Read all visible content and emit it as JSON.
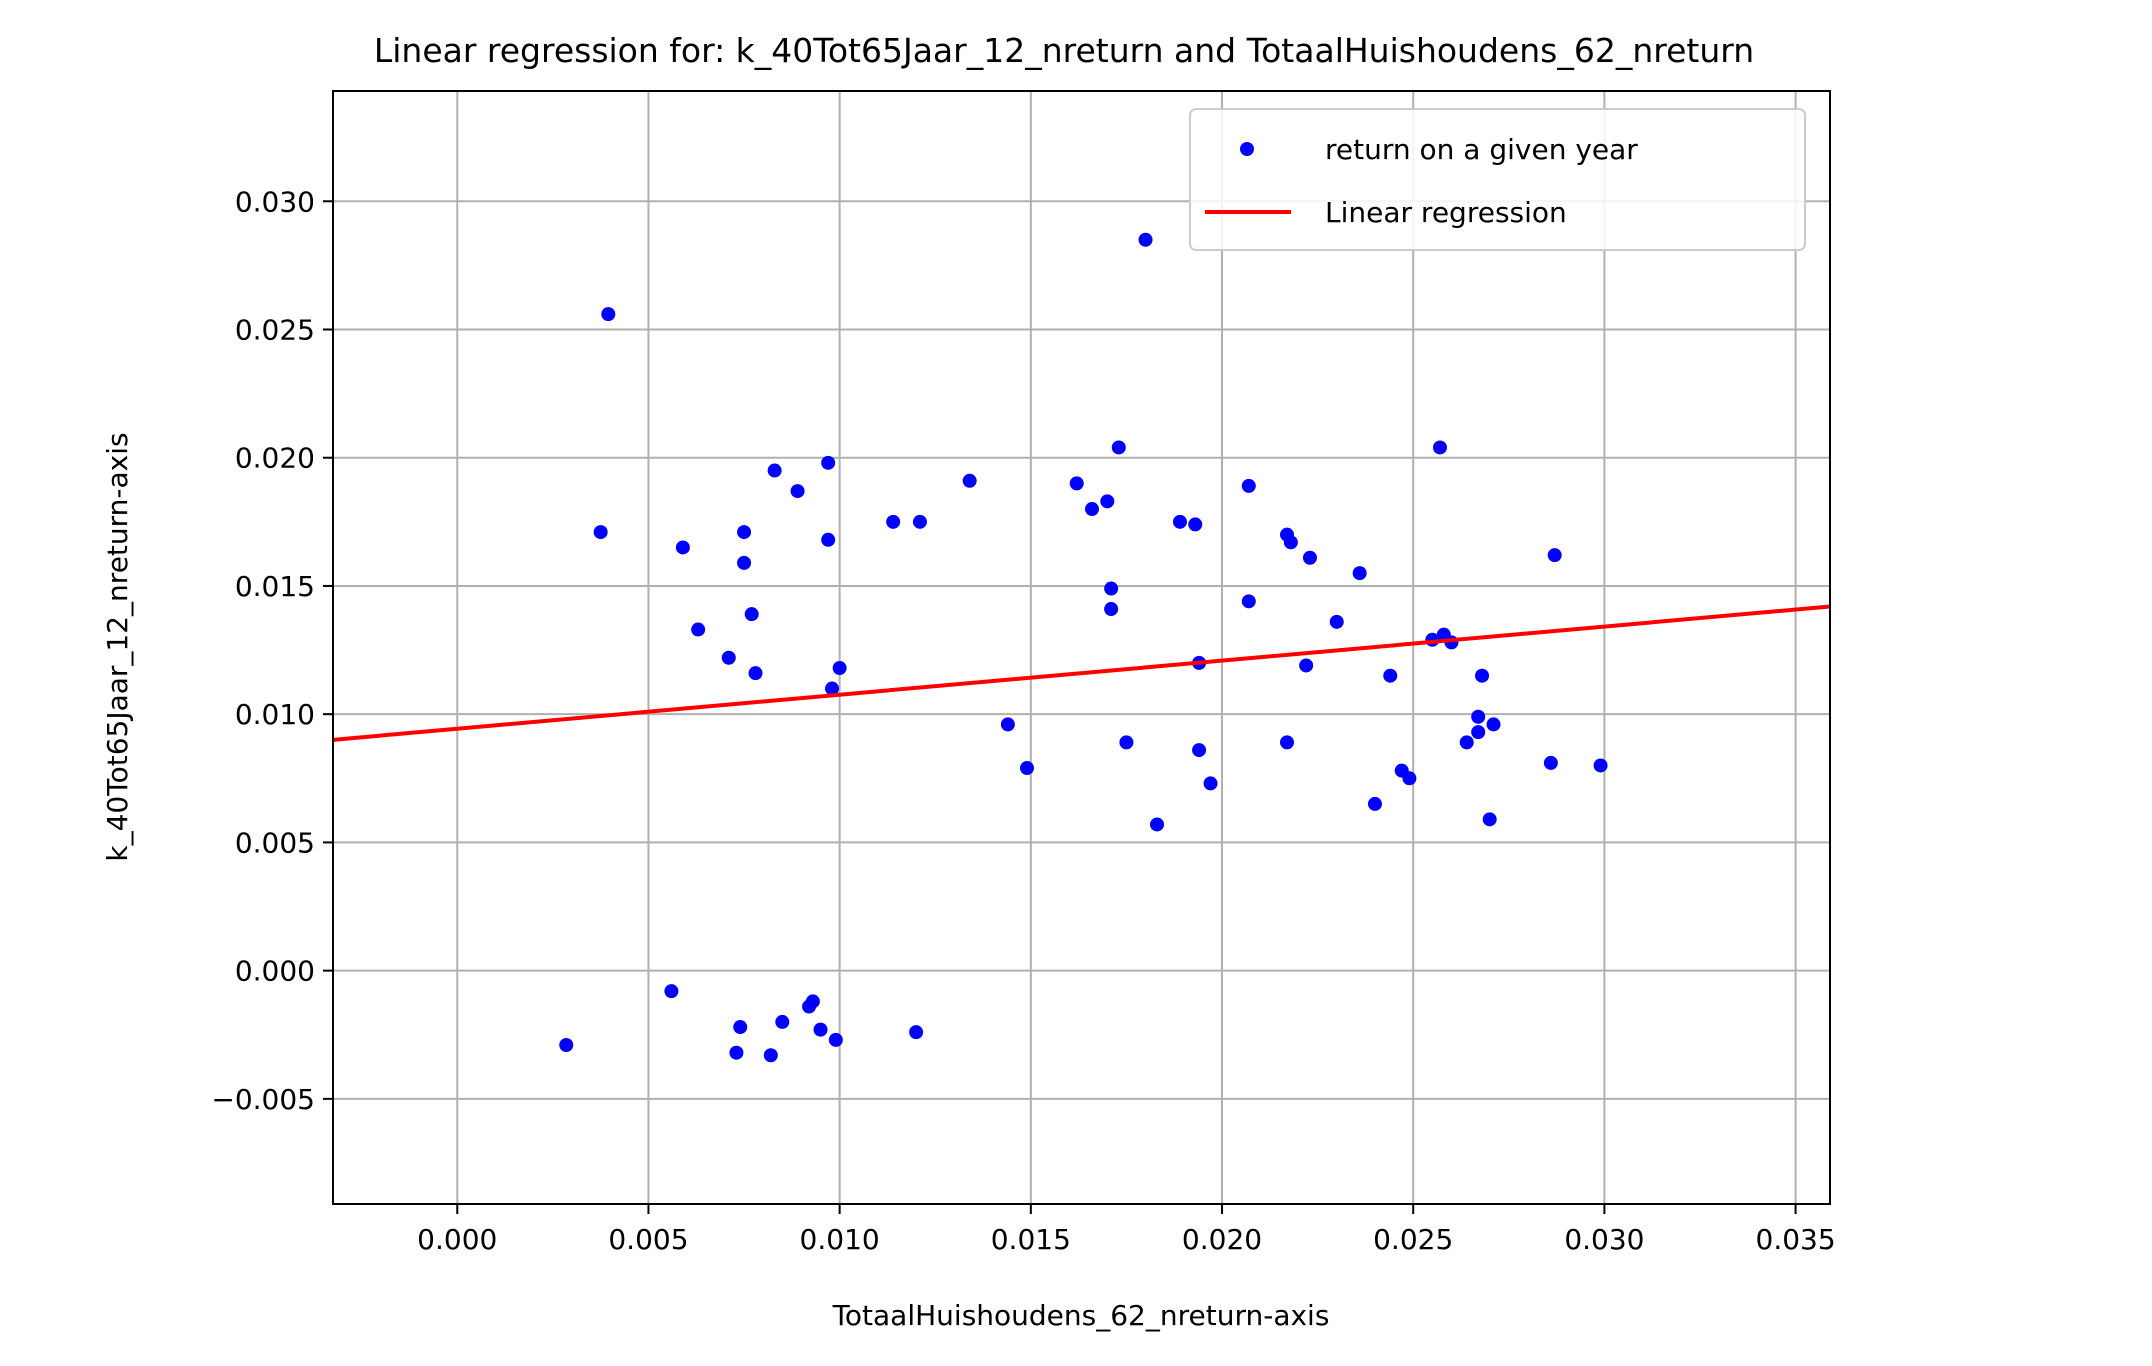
{
  "chart_data": {
    "type": "scatter",
    "title": "Linear regression for: k_40Tot65Jaar_12_nreturn and TotaalHuishoudens_62_nreturn",
    "xlabel": "TotaalHuishoudens_62_nreturn-axis",
    "ylabel": "k_40Tot65Jaar_12_nreturn-axis",
    "xlim": [
      -0.00325,
      0.0359
    ],
    "ylim": [
      -0.0091,
      0.0343
    ],
    "x_ticks": [
      0.0,
      0.005,
      0.01,
      0.015,
      0.02,
      0.025,
      0.03,
      0.035
    ],
    "x_tick_labels": [
      "0.000",
      "0.005",
      "0.010",
      "0.015",
      "0.020",
      "0.025",
      "0.030",
      "0.035"
    ],
    "y_ticks": [
      -0.005,
      0.0,
      0.005,
      0.01,
      0.015,
      0.02,
      0.025,
      0.03
    ],
    "y_tick_labels": [
      "−0.005",
      "0.000",
      "0.005",
      "0.010",
      "0.015",
      "0.020",
      "0.025",
      "0.030"
    ],
    "grid": true,
    "legend_position": "upper right",
    "series": [
      {
        "name": "return on a given year",
        "kind": "scatter",
        "color": "#0000ff",
        "points": [
          [
            0.00285,
            -0.0029
          ],
          [
            0.00375,
            0.0171
          ],
          [
            0.00395,
            0.0256
          ],
          [
            0.0056,
            -0.0008
          ],
          [
            0.0059,
            0.0165
          ],
          [
            0.0063,
            0.0133
          ],
          [
            0.0071,
            0.0122
          ],
          [
            0.0073,
            -0.0032
          ],
          [
            0.0074,
            -0.0022
          ],
          [
            0.0075,
            0.0171
          ],
          [
            0.0075,
            0.0159
          ],
          [
            0.0077,
            0.0139
          ],
          [
            0.0078,
            0.0116
          ],
          [
            0.0082,
            -0.0033
          ],
          [
            0.0083,
            0.0195
          ],
          [
            0.0085,
            -0.002
          ],
          [
            0.0089,
            0.0187
          ],
          [
            0.0092,
            -0.0014
          ],
          [
            0.0093,
            -0.0012
          ],
          [
            0.0095,
            -0.0023
          ],
          [
            0.0097,
            0.0168
          ],
          [
            0.0097,
            0.0198
          ],
          [
            0.0098,
            0.011
          ],
          [
            0.0099,
            -0.0027
          ],
          [
            0.01,
            0.0118
          ],
          [
            0.0114,
            0.0175
          ],
          [
            0.012,
            -0.0024
          ],
          [
            0.0121,
            0.0175
          ],
          [
            0.0134,
            0.0191
          ],
          [
            0.0144,
            0.0096
          ],
          [
            0.0149,
            0.0079
          ],
          [
            0.0162,
            0.019
          ],
          [
            0.0166,
            0.018
          ],
          [
            0.017,
            0.0183
          ],
          [
            0.0171,
            0.0149
          ],
          [
            0.0171,
            0.0141
          ],
          [
            0.0173,
            0.0204
          ],
          [
            0.0175,
            0.0089
          ],
          [
            0.018,
            0.0285
          ],
          [
            0.0183,
            0.0057
          ],
          [
            0.0189,
            0.0175
          ],
          [
            0.0193,
            0.0174
          ],
          [
            0.0194,
            0.012
          ],
          [
            0.0194,
            0.0086
          ],
          [
            0.0197,
            0.0073
          ],
          [
            0.0207,
            0.0189
          ],
          [
            0.0207,
            0.0144
          ],
          [
            0.0217,
            0.017
          ],
          [
            0.0217,
            0.0089
          ],
          [
            0.0218,
            0.0167
          ],
          [
            0.0222,
            0.0119
          ],
          [
            0.0223,
            0.0161
          ],
          [
            0.023,
            0.0136
          ],
          [
            0.0236,
            0.0155
          ],
          [
            0.024,
            0.0065
          ],
          [
            0.0244,
            0.0115
          ],
          [
            0.0247,
            0.0078
          ],
          [
            0.0249,
            0.0075
          ],
          [
            0.0255,
            0.0129
          ],
          [
            0.0257,
            0.0204
          ],
          [
            0.0258,
            0.0131
          ],
          [
            0.026,
            0.0128
          ],
          [
            0.0264,
            0.0089
          ],
          [
            0.0267,
            0.0099
          ],
          [
            0.0267,
            0.0093
          ],
          [
            0.0268,
            0.0115
          ],
          [
            0.027,
            0.0059
          ],
          [
            0.0271,
            0.0096
          ],
          [
            0.0286,
            0.0081
          ],
          [
            0.0287,
            0.0162
          ],
          [
            0.0299,
            0.008
          ]
        ]
      },
      {
        "name": "Linear regression",
        "kind": "line",
        "color": "#ff0000",
        "points": [
          [
            -0.00325,
            0.009
          ],
          [
            0.0359,
            0.0142
          ]
        ]
      }
    ]
  }
}
